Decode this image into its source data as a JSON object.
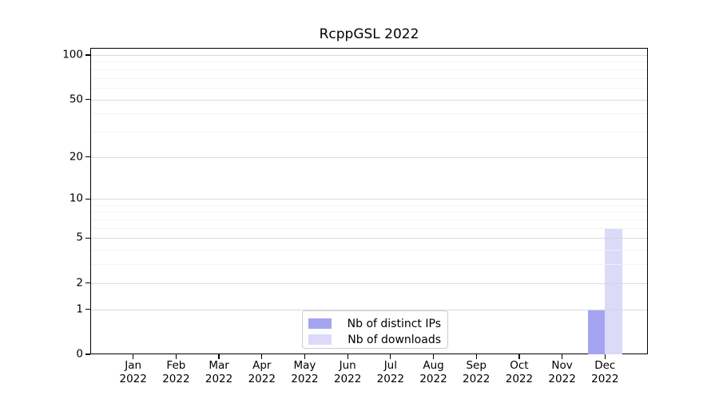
{
  "chart_data": {
    "type": "bar",
    "title": "RcppGSL 2022",
    "y_scale": "log1p",
    "x_categories": [
      "Jan",
      "Feb",
      "Mar",
      "Apr",
      "May",
      "Jun",
      "Jul",
      "Aug",
      "Sep",
      "Oct",
      "Nov",
      "Dec"
    ],
    "x_year": "2022",
    "series": [
      {
        "name": "Nb of distinct IPs",
        "color": "#a5a4f1",
        "values": [
          0,
          0,
          0,
          0,
          0,
          0,
          0,
          0,
          0,
          0,
          0,
          1
        ]
      },
      {
        "name": "Nb of downloads",
        "color": "#dbdaf8",
        "values": [
          0,
          0,
          0,
          0,
          0,
          0,
          0,
          0,
          0,
          0,
          0,
          6
        ]
      }
    ],
    "y_major_ticks": [
      0,
      1,
      2,
      5,
      10,
      20,
      50,
      100
    ],
    "y_minor_gridlines": [
      3,
      4,
      6,
      7,
      8,
      9,
      30,
      40,
      60,
      70,
      80,
      90
    ],
    "y_max": 111.8,
    "grid": true,
    "legend_position": "inside-bottom-center",
    "colors": {
      "major_grid": "#d6d6d6",
      "minor_grid": "#f2f2f2",
      "spine": "#000000",
      "background": "#ffffff",
      "legend_border": "#cccccc",
      "tick_text": "#000000"
    }
  }
}
